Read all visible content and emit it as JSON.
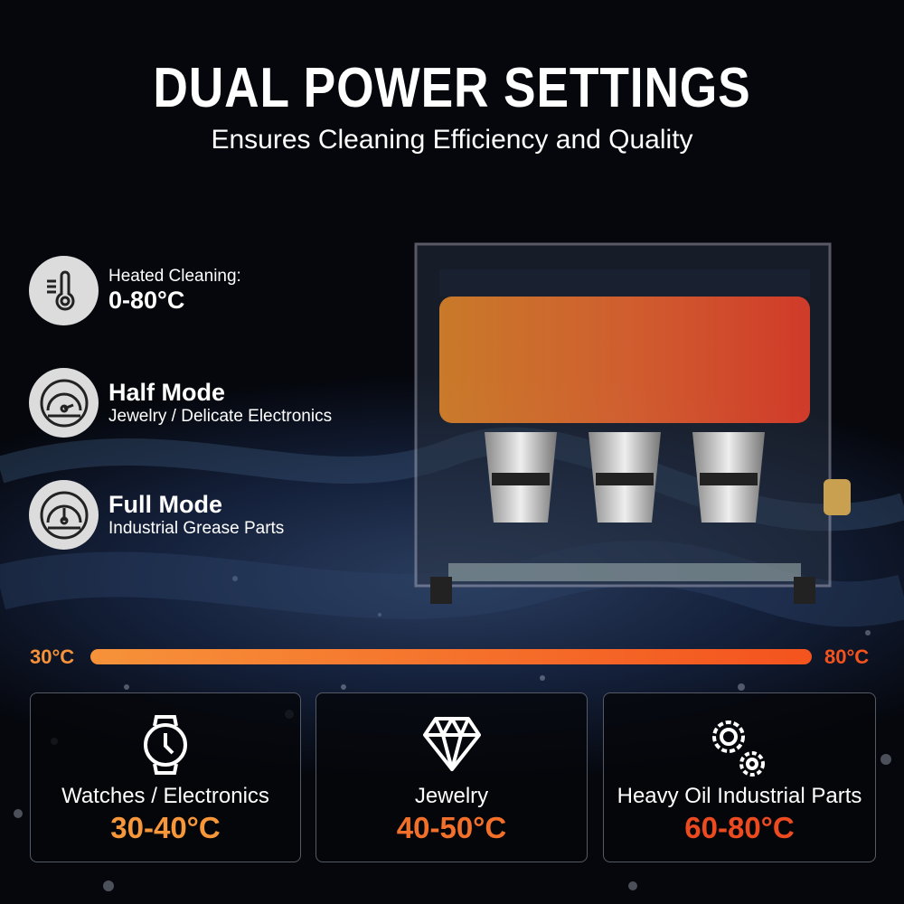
{
  "header": {
    "title": "DUAL POWER SETTINGS",
    "subtitle": "Ensures Cleaning Efficiency and Quality"
  },
  "features": [
    {
      "icon": "thermometer-icon",
      "label": "Heated Cleaning:",
      "value": "0-80°C"
    },
    {
      "icon": "half-gauge-icon",
      "title": "Half Mode",
      "desc": "Jewelry / Delicate Electronics"
    },
    {
      "icon": "full-gauge-icon",
      "title": "Full Mode",
      "desc": "Industrial Grease Parts"
    }
  ],
  "temperature_bar": {
    "min_label": "30°C",
    "max_label": "80°C",
    "colors": [
      "#f6923a",
      "#f4531e"
    ]
  },
  "cards": [
    {
      "icon": "watch-icon",
      "label": "Watches / Electronics",
      "range": "30-40°C",
      "color": "#f7973a"
    },
    {
      "icon": "diamond-icon",
      "label": "Jewelry",
      "range": "40-50°C",
      "color": "#f3702a"
    },
    {
      "icon": "gears-icon",
      "label": "Heavy Oil Industrial Parts",
      "range": "60-80°C",
      "color": "#ee4a20"
    }
  ]
}
